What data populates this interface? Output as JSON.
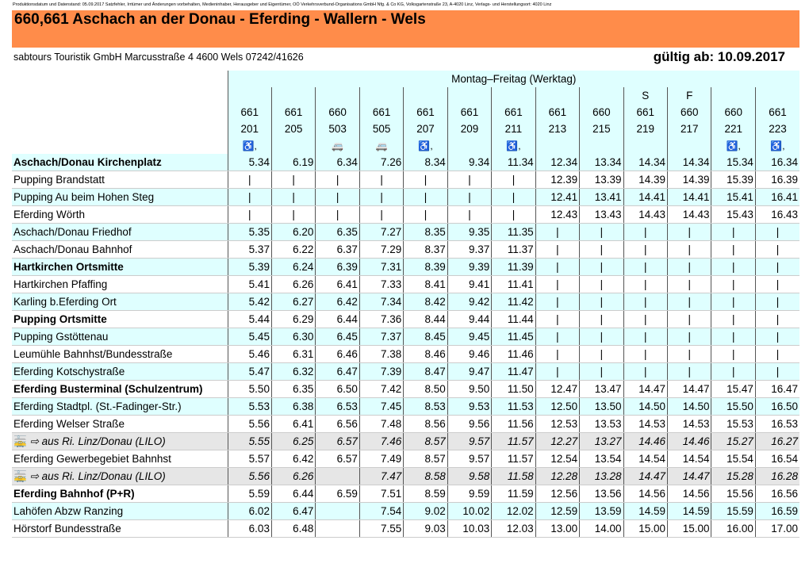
{
  "meta": "Produktionsdatum und Datenstand: 05.09.2017 Satzfehler, Irrtümer und Änderungen vorbehalten, Medieninhaber, Herausgeber und Eigentümer, OÖ Verkehrsverbund-Organisations GmbH Nfg. & Co KG, Volksgartenstraße 23, A-4020 Linz, Verlags- und Herstellungsort: 4020 Linz",
  "header": {
    "title": "660,661 Aschach an der Donau - Eferding - Wallern - Wels",
    "operator": "sabtours Touristik GmbH Marcusstraße 4 4600 Wels 07242/41626",
    "valid": "gültig ab: 10.09.2017"
  },
  "table": {
    "service_days": "Montag–Freitag (Werktag)",
    "day_notes": [
      null,
      null,
      null,
      null,
      null,
      null,
      null,
      null,
      null,
      "S",
      "F",
      null,
      null
    ],
    "lines": [
      "661",
      "661",
      "660",
      "661",
      "661",
      "661",
      "661",
      "661",
      "660",
      "661",
      "660",
      "660",
      "661"
    ],
    "trips": [
      "201",
      "205",
      "503",
      "505",
      "207",
      "209",
      "211",
      "213",
      "215",
      "219",
      "217",
      "221",
      "223"
    ],
    "rows": [
      {
        "stop": "Aschach/Donau Kirchenplatz",
        "bold": true,
        "times": [
          "5.34",
          "6.19",
          "6.34",
          "7.26",
          "8.34",
          "9.34",
          "11.34",
          "12.34",
          "13.34",
          "14.34",
          "14.34",
          "15.34",
          "16.34"
        ]
      },
      {
        "stop": "Pupping Brandstatt",
        "times": [
          "|",
          "|",
          "|",
          "|",
          "|",
          "|",
          "|",
          "12.39",
          "13.39",
          "14.39",
          "14.39",
          "15.39",
          "16.39"
        ]
      },
      {
        "stop": "Pupping Au beim Hohen Steg",
        "times": [
          "|",
          "|",
          "|",
          "|",
          "|",
          "|",
          "|",
          "12.41",
          "13.41",
          "14.41",
          "14.41",
          "15.41",
          "16.41"
        ]
      },
      {
        "stop": "Eferding Wörth",
        "times": [
          "|",
          "|",
          "|",
          "|",
          "|",
          "|",
          "|",
          "12.43",
          "13.43",
          "14.43",
          "14.43",
          "15.43",
          "16.43"
        ]
      },
      {
        "stop": "Aschach/Donau Friedhof",
        "times": [
          "5.35",
          "6.20",
          "6.35",
          "7.27",
          "8.35",
          "9.35",
          "11.35",
          "|",
          "|",
          "|",
          "|",
          "|",
          "|"
        ]
      },
      {
        "stop": "Aschach/Donau Bahnhof",
        "times": [
          "5.37",
          "6.22",
          "6.37",
          "7.29",
          "8.37",
          "9.37",
          "11.37",
          "|",
          "|",
          "|",
          "|",
          "|",
          "|"
        ]
      },
      {
        "stop": "Hartkirchen Ortsmitte",
        "bold": true,
        "times": [
          "5.39",
          "6.24",
          "6.39",
          "7.31",
          "8.39",
          "9.39",
          "11.39",
          "|",
          "|",
          "|",
          "|",
          "|",
          "|"
        ]
      },
      {
        "stop": "Hartkirchen Pfaffing",
        "times": [
          "5.41",
          "6.26",
          "6.41",
          "7.33",
          "8.41",
          "9.41",
          "11.41",
          "|",
          "|",
          "|",
          "|",
          "|",
          "|"
        ]
      },
      {
        "stop": "Karling b.Eferding Ort",
        "times": [
          "5.42",
          "6.27",
          "6.42",
          "7.34",
          "8.42",
          "9.42",
          "11.42",
          "|",
          "|",
          "|",
          "|",
          "|",
          "|"
        ]
      },
      {
        "stop": "Pupping Ortsmitte",
        "bold": true,
        "times": [
          "5.44",
          "6.29",
          "6.44",
          "7.36",
          "8.44",
          "9.44",
          "11.44",
          "|",
          "|",
          "|",
          "|",
          "|",
          "|"
        ]
      },
      {
        "stop": "Pupping Gstöttenau",
        "times": [
          "5.45",
          "6.30",
          "6.45",
          "7.37",
          "8.45",
          "9.45",
          "11.45",
          "|",
          "|",
          "|",
          "|",
          "|",
          "|"
        ]
      },
      {
        "stop": "Leumühle Bahnhst/Bundesstraße",
        "times": [
          "5.46",
          "6.31",
          "6.46",
          "7.38",
          "8.46",
          "9.46",
          "11.46",
          "|",
          "|",
          "|",
          "|",
          "|",
          "|"
        ]
      },
      {
        "stop": "Eferding Kotschystraße",
        "times": [
          "5.47",
          "6.32",
          "6.47",
          "7.39",
          "8.47",
          "9.47",
          "11.47",
          "|",
          "|",
          "|",
          "|",
          "|",
          "|"
        ]
      },
      {
        "stop": "Eferding Busterminal (Schulzentrum)",
        "bold": true,
        "times": [
          "5.50",
          "6.35",
          "6.50",
          "7.42",
          "8.50",
          "9.50",
          "11.50",
          "12.47",
          "13.47",
          "14.47",
          "14.47",
          "15.47",
          "16.47"
        ]
      },
      {
        "stop": "Eferding Stadtpl. (St.-Fadinger-Str.)",
        "times": [
          "5.53",
          "6.38",
          "6.53",
          "7.45",
          "8.53",
          "9.53",
          "11.53",
          "12.50",
          "13.50",
          "14.50",
          "14.50",
          "15.50",
          "16.50"
        ]
      },
      {
        "stop": "Eferding Welser Straße",
        "times": [
          "5.56",
          "6.41",
          "6.56",
          "7.48",
          "8.56",
          "9.56",
          "11.56",
          "12.53",
          "13.53",
          "14.53",
          "14.53",
          "15.53",
          "16.53"
        ]
      },
      {
        "stop": "⇨ aus Ri. Linz/Donau (LILO)",
        "lilo": true,
        "times": [
          "5.55",
          "6.25",
          "6.57",
          "7.46",
          "8.57",
          "9.57",
          "11.57",
          "12.27",
          "13.27",
          "14.46",
          "14.46",
          "15.27",
          "16.27"
        ]
      },
      {
        "stop": "Eferding Gewerbegebiet Bahnhst",
        "times": [
          "5.57",
          "6.42",
          "6.57",
          "7.49",
          "8.57",
          "9.57",
          "11.57",
          "12.54",
          "13.54",
          "14.54",
          "14.54",
          "15.54",
          "16.54"
        ]
      },
      {
        "stop": "⇨ aus Ri. Linz/Donau (LILO)",
        "lilo": true,
        "times": [
          "5.56",
          "6.26",
          null,
          "7.47",
          "8.58",
          "9.58",
          "11.58",
          "12.28",
          "13.28",
          "14.47",
          "14.47",
          "15.28",
          "16.28"
        ]
      },
      {
        "stop": "Eferding Bahnhof (P+R)",
        "bold": true,
        "times": [
          "5.59",
          "6.44",
          "6.59",
          "7.51",
          "8.59",
          "9.59",
          "11.59",
          "12.56",
          "13.56",
          "14.56",
          "14.56",
          "15.56",
          "16.56"
        ]
      },
      {
        "stop": "Lahöfen Abzw Ranzing",
        "times": [
          "6.02",
          "6.47",
          null,
          "7.54",
          "9.02",
          "10.02",
          "12.02",
          "12.59",
          "13.59",
          "14.59",
          "14.59",
          "15.59",
          "16.59"
        ]
      },
      {
        "stop": "Hörstorf Bundesstraße",
        "times": [
          "6.03",
          "6.48",
          null,
          "7.55",
          "9.03",
          "10.03",
          "12.03",
          "13.00",
          "14.00",
          "15.00",
          "15.00",
          "16.00",
          "17.00"
        ]
      }
    ]
  }
}
